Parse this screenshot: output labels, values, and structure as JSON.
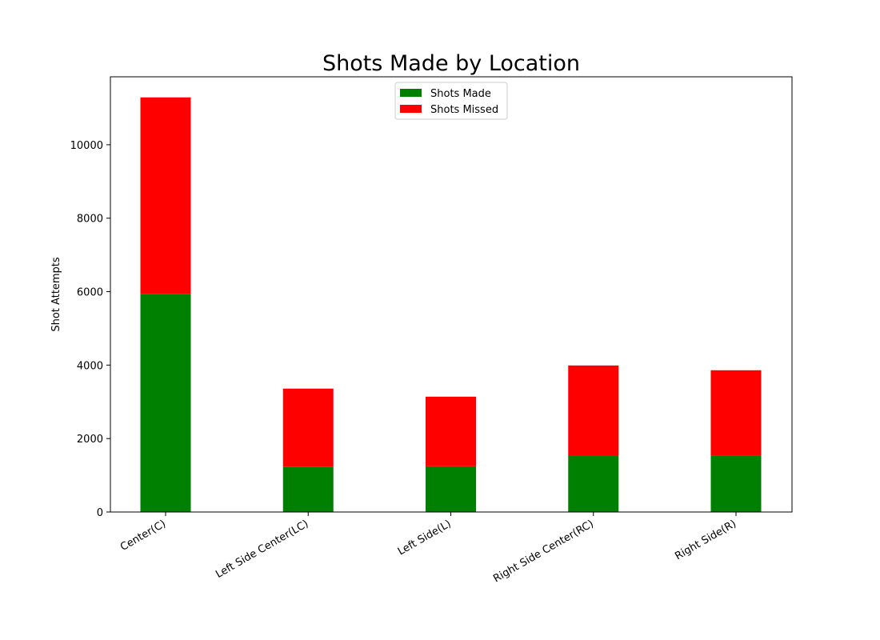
{
  "chart_data": {
    "type": "bar",
    "stacked": true,
    "title": "Shots Made by Location",
    "xlabel": "",
    "ylabel": "Shot Attempts",
    "categories": [
      "Center(C)",
      "Left Side Center(LC)",
      "Left Side(L)",
      "Right Side Center(RC)",
      "Right Side(R)"
    ],
    "series": [
      {
        "name": "Shots Made",
        "color": "#008000",
        "values": [
          5930,
          1225,
          1245,
          1535,
          1545
        ]
      },
      {
        "name": "Shots Missed",
        "color": "#ff0000",
        "values": [
          5360,
          2135,
          1895,
          2455,
          2315
        ]
      }
    ],
    "ylim": [
      0,
      11850
    ],
    "yticks": [
      0,
      2000,
      4000,
      6000,
      8000,
      10000
    ],
    "legend": {
      "placement": "upper-center"
    },
    "grid": false
  }
}
